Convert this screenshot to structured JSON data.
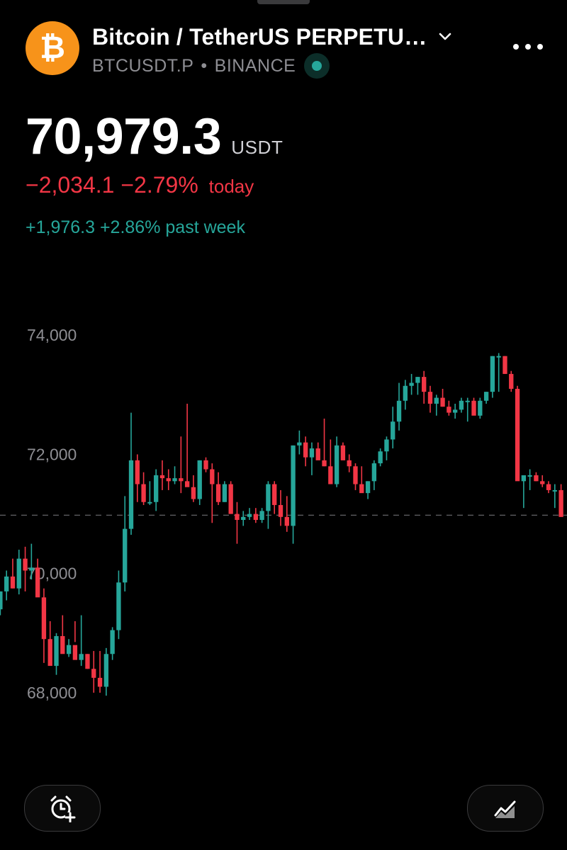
{
  "symbol": {
    "title": "Bitcoin / TetherUS PERPETU…",
    "ticker": "BTCUSDT.P",
    "exchange": "BINANCE",
    "logo_glyph": "₿",
    "logo_color": "#f7931a",
    "icons": {
      "dropdown": "chevron-down-icon",
      "more": "more-dots-icon",
      "live": "live-status-dot"
    }
  },
  "quote": {
    "price": "70,979.3",
    "currency": "USDT",
    "change_today": "−2,034.1 −2.79%",
    "today_label": "today",
    "change_week": "+1,976.3 +2.86% past week"
  },
  "colors": {
    "up": "#26a69a",
    "down": "#f23645",
    "background": "#000000",
    "muted": "#8e8e93"
  },
  "chart_data": {
    "type": "candlestick",
    "y_ticks": [
      "74,000",
      "72,000",
      "70,000",
      "68,000"
    ],
    "y_tick_values": [
      74000,
      72000,
      70000,
      68000
    ],
    "ylim": [
      67500,
      74300
    ],
    "last_price_line": 70979.3,
    "candles_ohlc": [
      [
        69400,
        69700,
        69300,
        69700
      ],
      [
        69700,
        70050,
        69550,
        69950
      ],
      [
        69950,
        70250,
        69750,
        69750
      ],
      [
        69750,
        70400,
        69650,
        70250
      ],
      [
        70250,
        70450,
        69700,
        70050
      ],
      [
        70050,
        70500,
        69900,
        70100
      ],
      [
        70100,
        70250,
        69850,
        69600
      ],
      [
        69600,
        69750,
        68500,
        68900
      ],
      [
        68900,
        69200,
        68550,
        68450
      ],
      [
        68450,
        69000,
        68300,
        68950
      ],
      [
        68950,
        69300,
        68800,
        68650
      ],
      [
        68650,
        68900,
        68600,
        68800
      ],
      [
        68800,
        69200,
        68850,
        68550
      ],
      [
        68550,
        69300,
        68450,
        68650
      ],
      [
        68650,
        68650,
        68400,
        68400
      ],
      [
        68400,
        68700,
        68000,
        68250
      ],
      [
        68250,
        68700,
        68000,
        68100
      ],
      [
        68100,
        68750,
        67950,
        68650
      ],
      [
        68650,
        69100,
        68550,
        69050
      ],
      [
        69050,
        70050,
        68900,
        69850
      ],
      [
        69850,
        71300,
        69700,
        70750
      ],
      [
        70750,
        72700,
        70650,
        71900
      ],
      [
        71900,
        72000,
        71200,
        71500
      ],
      [
        71500,
        71700,
        71150,
        71200
      ],
      [
        71200,
        71550,
        71150,
        71200
      ],
      [
        71200,
        71750,
        71050,
        71650
      ],
      [
        71650,
        71900,
        71400,
        71600
      ],
      [
        71600,
        71750,
        71400,
        71550
      ],
      [
        71550,
        71800,
        71500,
        71600
      ],
      [
        71600,
        72300,
        71350,
        71550
      ],
      [
        71550,
        72850,
        71500,
        71450
      ],
      [
        71450,
        71650,
        71200,
        71250
      ],
      [
        71250,
        71900,
        71150,
        71900
      ],
      [
        71900,
        71950,
        71700,
        71750
      ],
      [
        71750,
        71850,
        70850,
        71500
      ],
      [
        71500,
        71700,
        71150,
        71200
      ],
      [
        71200,
        71550,
        71200,
        71500
      ],
      [
        71500,
        71550,
        71000,
        71000
      ],
      [
        71000,
        71200,
        70500,
        70900
      ],
      [
        70900,
        71050,
        70800,
        70950
      ],
      [
        70950,
        71100,
        70900,
        71000
      ],
      [
        71000,
        71100,
        70850,
        70900
      ],
      [
        70900,
        71100,
        70850,
        71050
      ],
      [
        71050,
        71550,
        70750,
        71500
      ],
      [
        71500,
        71550,
        71000,
        71150
      ],
      [
        71150,
        71400,
        70800,
        70950
      ],
      [
        70950,
        71300,
        70700,
        70800
      ],
      [
        70800,
        72150,
        70500,
        72150
      ],
      [
        72150,
        72400,
        72000,
        72200
      ],
      [
        72200,
        72300,
        71800,
        71950
      ],
      [
        71950,
        72200,
        71650,
        72100
      ],
      [
        72100,
        72200,
        71950,
        71900
      ],
      [
        71900,
        72600,
        71800,
        71800
      ],
      [
        71800,
        72250,
        71500,
        71500
      ],
      [
        71500,
        72300,
        71450,
        72150
      ],
      [
        72150,
        72200,
        71950,
        71900
      ],
      [
        71900,
        72000,
        71700,
        71800
      ],
      [
        71800,
        71850,
        71400,
        71500
      ],
      [
        71500,
        71800,
        71400,
        71350
      ],
      [
        71350,
        71550,
        71250,
        71550
      ],
      [
        71550,
        71900,
        71400,
        71850
      ],
      [
        71850,
        72100,
        71800,
        72050
      ],
      [
        72050,
        72300,
        71900,
        72250
      ],
      [
        72250,
        72800,
        72100,
        72550
      ],
      [
        72550,
        73200,
        72400,
        72900
      ],
      [
        72900,
        73250,
        72750,
        73150
      ],
      [
        73150,
        73350,
        73000,
        73200
      ],
      [
        73200,
        73300,
        73000,
        73300
      ],
      [
        73300,
        73400,
        72850,
        73050
      ],
      [
        73050,
        73150,
        72700,
        72850
      ],
      [
        72850,
        73000,
        72650,
        72950
      ],
      [
        72950,
        73100,
        72800,
        72800
      ],
      [
        72800,
        72900,
        72650,
        72700
      ],
      [
        72700,
        72850,
        72600,
        72750
      ],
      [
        72750,
        72950,
        72700,
        72900
      ],
      [
        72900,
        72950,
        72550,
        72900
      ],
      [
        72900,
        72950,
        72700,
        72650
      ],
      [
        72650,
        72950,
        72600,
        72900
      ],
      [
        72900,
        73050,
        72850,
        73050
      ],
      [
        73050,
        73650,
        72950,
        73650
      ],
      [
        73650,
        73700,
        73050,
        73650
      ],
      [
        73650,
        73650,
        73350,
        73350
      ],
      [
        73350,
        73400,
        73050,
        73100
      ],
      [
        73100,
        73150,
        71650,
        71550
      ],
      [
        71550,
        71600,
        71100,
        71650
      ],
      [
        71650,
        71750,
        71400,
        71650
      ],
      [
        71650,
        71700,
        71550,
        71550
      ],
      [
        71550,
        71650,
        71450,
        71500
      ],
      [
        71500,
        71550,
        71350,
        71400
      ],
      [
        71400,
        71500,
        71100,
        71400
      ],
      [
        71400,
        71500,
        70950,
        70950
      ]
    ]
  },
  "actions": {
    "alert_icon": "add-alarm-icon",
    "chart_icon": "chart-type-icon"
  }
}
